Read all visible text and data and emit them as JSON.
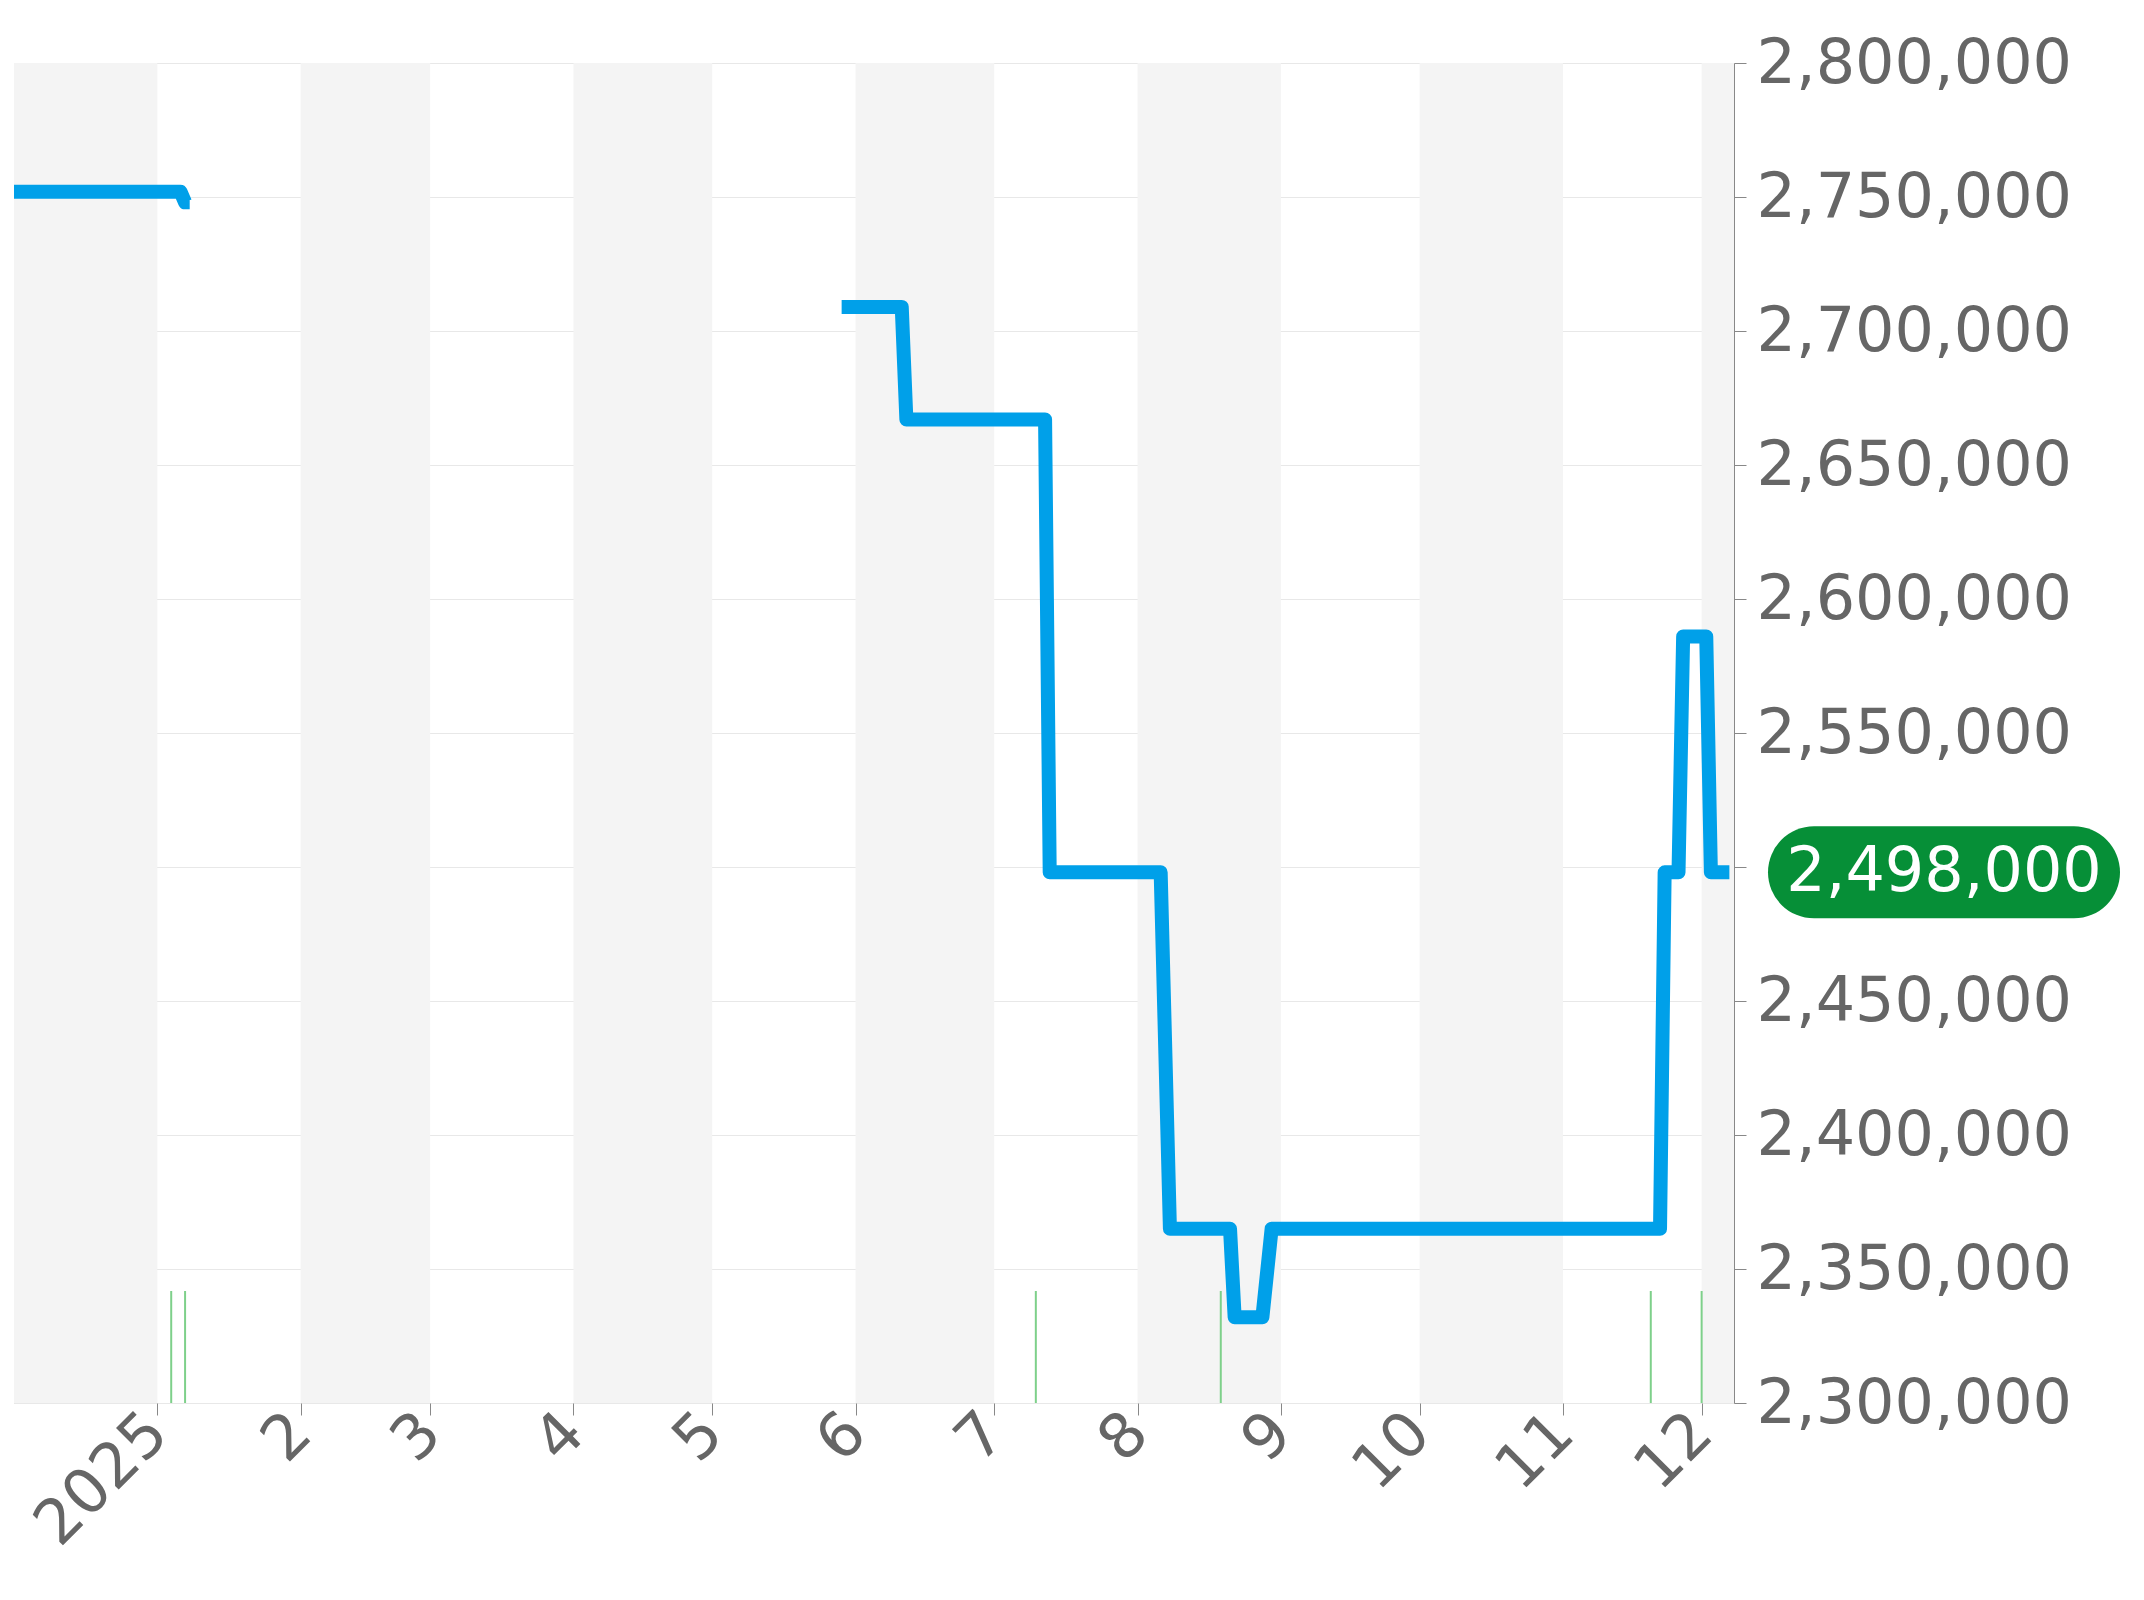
{
  "chart_data": {
    "type": "line",
    "x": [
      "2024-12-01",
      "2025-01-06",
      "2025-01-07",
      "2025-01-08",
      "2025-01-09",
      "2025-05-29",
      "2025-06-11",
      "2025-06-12",
      "2025-07-12",
      "2025-07-13",
      "2025-08-06",
      "2025-08-08",
      "2025-08-21",
      "2025-08-22",
      "2025-08-28",
      "2025-08-30",
      "2025-11-22",
      "2025-11-23",
      "2025-11-26",
      "2025-11-27",
      "2025-12-02",
      "2025-12-03",
      "2025-12-07"
    ],
    "series": [
      {
        "color": "#00a0e9",
        "values": [
          2752000,
          2752000,
          2748000,
          2748000,
          null,
          2709000,
          2709000,
          2667000,
          2667000,
          2498000,
          2498000,
          2365000,
          2365000,
          2332000,
          2332000,
          2365000,
          2365000,
          2498000,
          2498000,
          2586000,
          2586000,
          2498000,
          2498000
        ]
      }
    ],
    "ref_lines": [
      {
        "axis": "x",
        "value": "2025-01-04",
        "color": "#7ed08a"
      },
      {
        "axis": "x",
        "value": "2025-01-07",
        "color": "#7ed08a"
      },
      {
        "axis": "x",
        "value": "2025-07-10",
        "color": "#7ed08a"
      },
      {
        "axis": "x",
        "value": "2025-08-19",
        "color": "#7ed08a"
      },
      {
        "axis": "x",
        "value": "2025-11-20",
        "color": "#7ed08a"
      },
      {
        "axis": "x",
        "value": "2025-12-01",
        "color": "#7ed08a"
      }
    ],
    "xlim": [
      "2024-12-01",
      "2025-12-08"
    ],
    "xticks": [
      {
        "value": "2025-01-01",
        "label": "2025"
      },
      {
        "value": "2025-02-01",
        "label": "2"
      },
      {
        "value": "2025-03-01",
        "label": "3"
      },
      {
        "value": "2025-04-01",
        "label": "4"
      },
      {
        "value": "2025-05-01",
        "label": "5"
      },
      {
        "value": "2025-06-01",
        "label": "6"
      },
      {
        "value": "2025-07-01",
        "label": "7"
      },
      {
        "value": "2025-08-01",
        "label": "8"
      },
      {
        "value": "2025-09-01",
        "label": "9"
      },
      {
        "value": "2025-10-01",
        "label": "10"
      },
      {
        "value": "2025-11-01",
        "label": "11"
      },
      {
        "value": "2025-12-01",
        "label": "12"
      }
    ],
    "ylim": [
      2300000,
      2800000
    ],
    "yticks": [
      {
        "value": 2300000,
        "label": "2,300,000"
      },
      {
        "value": 2350000,
        "label": "2,350,000"
      },
      {
        "value": 2400000,
        "label": "2,400,000"
      },
      {
        "value": 2450000,
        "label": "2,450,000"
      },
      {
        "value": 2500000,
        "label": null
      },
      {
        "value": 2550000,
        "label": "2,550,000"
      },
      {
        "value": 2600000,
        "label": "2,600,000"
      },
      {
        "value": 2650000,
        "label": "2,650,000"
      },
      {
        "value": 2700000,
        "label": "2,700,000"
      },
      {
        "value": 2750000,
        "label": "2,750,000"
      },
      {
        "value": 2800000,
        "label": "2,800,000"
      }
    ],
    "bands": [
      {
        "axis": "x",
        "from": "2024-12-01",
        "to": "2025-01-01",
        "color": "#f4f4f4"
      },
      {
        "axis": "x",
        "from": "2025-02-01",
        "to": "2025-03-01",
        "color": "#f4f4f4"
      },
      {
        "axis": "x",
        "from": "2025-04-01",
        "to": "2025-05-01",
        "color": "#f4f4f4"
      },
      {
        "axis": "x",
        "from": "2025-06-01",
        "to": "2025-07-01",
        "color": "#f4f4f4"
      },
      {
        "axis": "x",
        "from": "2025-08-01",
        "to": "2025-09-01",
        "color": "#f4f4f4"
      },
      {
        "axis": "x",
        "from": "2025-10-01",
        "to": "2025-11-01",
        "color": "#f4f4f4"
      },
      {
        "axis": "x",
        "from": "2025-12-01",
        "to": "2025-12-08",
        "color": "#f4f4f4"
      }
    ],
    "annotations": [
      "2,498,000"
    ],
    "grid": "y",
    "marker": "none",
    "line_style": "solid"
  }
}
